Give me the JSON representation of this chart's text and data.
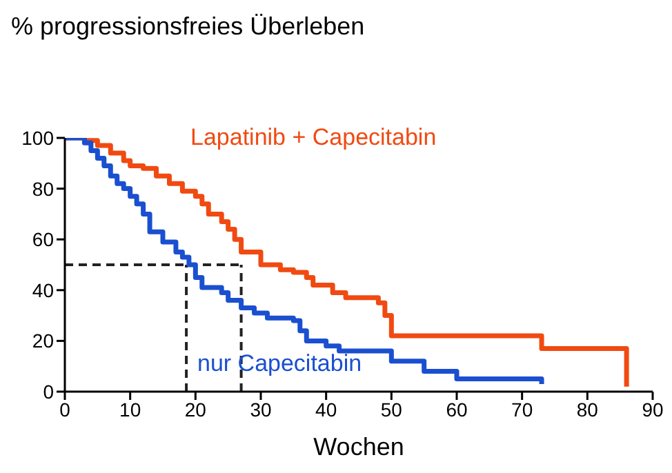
{
  "chart_data": {
    "type": "step",
    "ylabel": "% progressionsfreies Überleben",
    "xlabel": "Wochen",
    "xlim": [
      0,
      90
    ],
    "xticks": [
      0,
      10,
      20,
      30,
      40,
      50,
      60,
      70,
      80,
      90
    ],
    "ylim": [
      0,
      100
    ],
    "yticks": [
      0,
      20,
      40,
      60,
      80,
      100
    ],
    "grid": false,
    "legend": false,
    "marker": "none",
    "series": [
      {
        "name": "Lapatinib + Capecitabin",
        "color": "#f04a12",
        "x": [
          0,
          3,
          5,
          7,
          9,
          10,
          12,
          14,
          16,
          18,
          20,
          21,
          22,
          24,
          25,
          26,
          27,
          30,
          33,
          35,
          37,
          38,
          41,
          43,
          48,
          49,
          50,
          73,
          86
        ],
        "values": [
          100,
          99,
          97,
          94,
          91,
          89,
          88,
          85,
          82,
          79,
          77,
          74,
          70,
          67,
          64,
          60,
          55,
          50,
          48,
          47,
          45,
          42,
          39,
          37,
          35,
          30,
          22,
          17,
          2
        ]
      },
      {
        "name": "nur Capecitabin",
        "color": "#1a4fcf",
        "x": [
          0,
          3,
          4,
          5,
          6,
          7,
          8,
          9,
          10,
          11,
          12,
          13,
          15,
          17,
          18,
          19,
          20,
          21,
          24,
          25,
          27,
          29,
          31,
          35,
          36,
          37,
          40,
          42,
          50,
          55,
          60,
          73
        ],
        "values": [
          100,
          98,
          95,
          92,
          89,
          85,
          82,
          80,
          77,
          74,
          70,
          63,
          59,
          55,
          53,
          50,
          45,
          41,
          39,
          36,
          33,
          31,
          29,
          28,
          24,
          20,
          18,
          16,
          12,
          8,
          5,
          3
        ]
      }
    ],
    "ref_lines": [
      {
        "axis": "y",
        "value": 50,
        "line_style": "dashed",
        "color": "#222222"
      },
      {
        "axis": "x",
        "value": 18.6,
        "line_style": "dashed",
        "color": "#222222"
      },
      {
        "axis": "x",
        "value": 27,
        "line_style": "dashed",
        "color": "#222222"
      }
    ]
  }
}
